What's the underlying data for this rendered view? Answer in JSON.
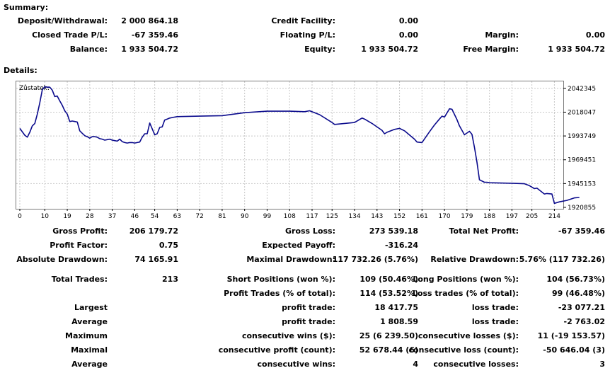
{
  "summary": {
    "heading": "Summary:",
    "rows": [
      [
        {
          "label": "Deposit/Withdrawal:",
          "value": "2 000 864.18"
        },
        {
          "label": "Credit Facility:",
          "value": "0.00"
        },
        {
          "label": "",
          "value": ""
        }
      ],
      [
        {
          "label": "Closed Trade P/L:",
          "value": "-67 359.46"
        },
        {
          "label": "Floating P/L:",
          "value": "0.00"
        },
        {
          "label": "Margin:",
          "value": "0.00"
        }
      ],
      [
        {
          "label": "Balance:",
          "value": "1 933 504.72"
        },
        {
          "label": "Equity:",
          "value": "1 933 504.72"
        },
        {
          "label": "Free Margin:",
          "value": "1 933 504.72"
        }
      ]
    ]
  },
  "details": {
    "heading": "Details:"
  },
  "chart_data": {
    "type": "line",
    "title": "Zůstatek:",
    "xlabel": "",
    "ylabel": "",
    "x_ticks": [
      "0",
      "10",
      "19",
      "28",
      "37",
      "46",
      "54",
      "63",
      "72",
      "81",
      "90",
      "99",
      "108",
      "117",
      "125",
      "134",
      "143",
      "152",
      "161",
      "170",
      "179",
      "188",
      "197",
      "205",
      "214"
    ],
    "y_ticks": [
      "2042345",
      "2018047",
      "1993749",
      "1969451",
      "1945153",
      "1920855"
    ],
    "xlim": [
      0,
      217
    ],
    "ylim": [
      1920855,
      2048000
    ],
    "grid": true,
    "series": [
      {
        "color": "#0a0a8c",
        "points": [
          [
            0,
            2001500
          ],
          [
            2,
            1994500
          ],
          [
            3,
            1992500
          ],
          [
            4,
            1997500
          ],
          [
            5,
            2004000
          ],
          [
            6,
            2006500
          ],
          [
            7,
            2016000
          ],
          [
            8,
            2027500
          ],
          [
            9,
            2041000
          ],
          [
            10,
            2044000
          ],
          [
            11,
            2043500
          ],
          [
            12,
            2043500
          ],
          [
            13,
            2040500
          ],
          [
            14,
            2034000
          ],
          [
            15,
            2034500
          ],
          [
            16,
            2029500
          ],
          [
            17,
            2025000
          ],
          [
            18,
            2019500
          ],
          [
            19,
            2016000
          ],
          [
            20,
            2008500
          ],
          [
            21,
            2009000
          ],
          [
            22,
            2008500
          ],
          [
            23,
            2008000
          ],
          [
            24,
            1999000
          ],
          [
            25,
            1996500
          ],
          [
            26,
            1994000
          ],
          [
            27,
            1993000
          ],
          [
            28,
            1991500
          ],
          [
            29,
            1993000
          ],
          [
            30,
            1993000
          ],
          [
            31,
            1992500
          ],
          [
            32,
            1991000
          ],
          [
            33,
            1990500
          ],
          [
            34,
            1989500
          ],
          [
            35,
            1990000
          ],
          [
            36,
            1990500
          ],
          [
            37,
            1989500
          ],
          [
            38,
            1989000
          ],
          [
            39,
            1988500
          ],
          [
            40,
            1990500
          ],
          [
            41,
            1988000
          ],
          [
            42,
            1987000
          ],
          [
            43,
            1986500
          ],
          [
            44,
            1987000
          ],
          [
            45,
            1987000
          ],
          [
            46,
            1986500
          ],
          [
            47,
            1987000
          ],
          [
            48,
            1987500
          ],
          [
            49,
            1992500
          ],
          [
            50,
            1996000
          ],
          [
            51,
            1996000
          ],
          [
            52,
            2007000
          ],
          [
            53,
            2001000
          ],
          [
            54,
            1995000
          ],
          [
            55,
            1996000
          ],
          [
            56,
            2002500
          ],
          [
            57,
            2003000
          ],
          [
            58,
            2010000
          ],
          [
            59,
            2011000
          ],
          [
            60,
            2012000
          ],
          [
            62,
            2013000
          ],
          [
            63,
            2013500
          ],
          [
            72,
            2014000
          ],
          [
            81,
            2014500
          ],
          [
            90,
            2017500
          ],
          [
            99,
            2019000
          ],
          [
            108,
            2019000
          ],
          [
            114,
            2018500
          ],
          [
            116,
            2019500
          ],
          [
            120,
            2015500
          ],
          [
            125,
            2007500
          ],
          [
            126,
            2005500
          ],
          [
            134,
            2007500
          ],
          [
            137,
            2012000
          ],
          [
            138,
            2011000
          ],
          [
            141,
            2006500
          ],
          [
            145,
            1999500
          ],
          [
            146,
            1996000
          ],
          [
            147,
            1997500
          ],
          [
            150,
            2000500
          ],
          [
            152,
            2001500
          ],
          [
            154,
            1999000
          ],
          [
            158,
            1990500
          ],
          [
            159,
            1987500
          ],
          [
            161,
            1987000
          ],
          [
            164,
            1998000
          ],
          [
            166,
            2005000
          ],
          [
            168,
            2011000
          ],
          [
            169,
            2014000
          ],
          [
            170,
            2013000
          ],
          [
            172,
            2021500
          ],
          [
            173,
            2021000
          ],
          [
            175,
            2010500
          ],
          [
            176,
            2004000
          ],
          [
            177,
            1999500
          ],
          [
            178,
            1995000
          ],
          [
            180,
            1998500
          ],
          [
            181,
            1995500
          ],
          [
            182,
            1982000
          ],
          [
            183,
            1967000
          ],
          [
            184,
            1949000
          ],
          [
            186,
            1946500
          ],
          [
            187,
            1946500
          ],
          [
            188,
            1946000
          ],
          [
            197,
            1945500
          ],
          [
            202,
            1945000
          ],
          [
            204,
            1943000
          ],
          [
            206,
            1940000
          ],
          [
            207,
            1940500
          ],
          [
            210,
            1934500
          ],
          [
            211,
            1935000
          ],
          [
            213,
            1934500
          ],
          [
            214,
            1925000
          ],
          [
            216,
            1926500
          ],
          [
            219,
            1928000
          ],
          [
            222,
            1930500
          ],
          [
            224,
            1931000
          ]
        ]
      }
    ]
  },
  "stats": {
    "rows": [
      [
        "Gross Profit:",
        "206 179.72",
        "Gross Loss:",
        "273 539.18",
        "Total Net Profit:",
        "-67 359.46"
      ],
      [
        "Profit Factor:",
        "0.75",
        "Expected Payoff:",
        "-316.24",
        "",
        ""
      ],
      [
        "Absolute Drawdown:",
        "74 165.91",
        "Maximal Drawdown:",
        "117 732.26 (5.76%)",
        "Relative Drawdown:",
        "5.76% (117 732.26)"
      ],
      [
        "Total Trades:",
        "213",
        "Short Positions (won %):",
        "109 (50.46%)",
        "Long Positions (won %):",
        "104 (56.73%)"
      ],
      [
        "",
        "",
        "Profit Trades (% of total):",
        "114 (53.52%)",
        "Loss trades (% of total):",
        "99 (46.48%)"
      ],
      [
        "Largest",
        "",
        "profit trade:",
        "18 417.75",
        "loss trade:",
        "-23 077.21"
      ],
      [
        "Average",
        "",
        "profit trade:",
        "1 808.59",
        "loss trade:",
        "-2 763.02"
      ],
      [
        "Maximum",
        "",
        "consecutive wins ($):",
        "25 (6 239.50)",
        "consecutive losses ($):",
        "11 (-19 153.57)"
      ],
      [
        "Maximal",
        "",
        "consecutive profit (count):",
        "52 678.44 (6)",
        "consecutive loss (count):",
        "-50 646.04 (3)"
      ],
      [
        "Average",
        "",
        "consecutive wins:",
        "4",
        "consecutive losses:",
        "3"
      ]
    ]
  }
}
